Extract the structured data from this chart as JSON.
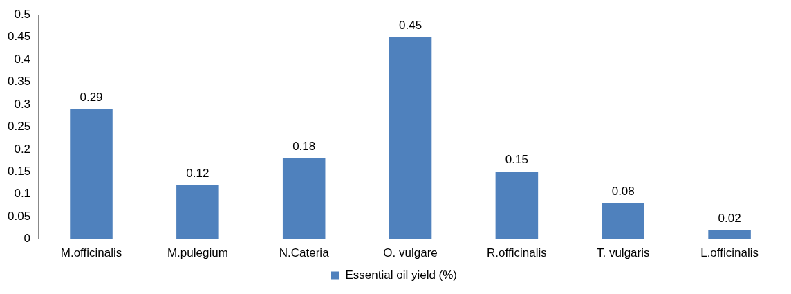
{
  "chart_data": {
    "type": "bar",
    "categories": [
      "M.officinalis",
      "M.pulegium",
      "N.Cateria",
      "O. vulgare",
      "R.officinalis",
      "T. vulgaris",
      "L.officinalis"
    ],
    "series": [
      {
        "name": "Essential oil yield (%)",
        "color": "#4f81bd",
        "values": [
          0.29,
          0.12,
          0.18,
          0.45,
          0.15,
          0.08,
          0.02
        ]
      }
    ],
    "ylim": [
      0,
      0.5
    ],
    "yticks": [
      0,
      0.05,
      0.1,
      0.15,
      0.2,
      0.25,
      0.3,
      0.35,
      0.4,
      0.45,
      0.5
    ],
    "grid": false,
    "legend": "bottom",
    "data_labels": true
  }
}
